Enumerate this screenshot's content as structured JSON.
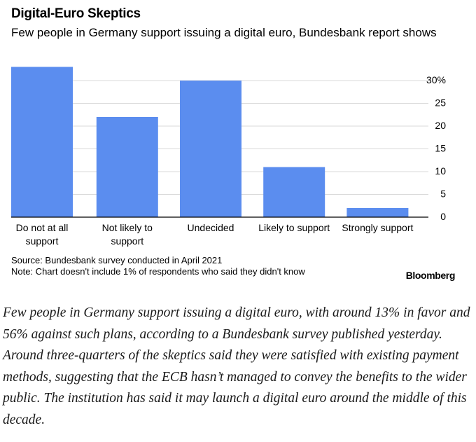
{
  "chart_data": {
    "type": "bar",
    "title": "Digital-Euro Skeptics",
    "subtitle": "Few people in Germany support issuing a digital euro, Bundesbank report shows",
    "categories": [
      [
        "Do not at all",
        "support"
      ],
      [
        "Not likely to",
        "support"
      ],
      [
        "Undecided"
      ],
      [
        "Likely to support"
      ],
      [
        "Strongly support"
      ]
    ],
    "values": [
      33,
      22,
      30,
      11,
      2
    ],
    "ylim": [
      0,
      33
    ],
    "yticks": [
      0,
      5,
      10,
      15,
      20,
      25,
      30
    ],
    "ytick_labels": [
      "0",
      "5",
      "10",
      "15",
      "20",
      "25",
      "30%"
    ],
    "y_axis_position": "right",
    "grid": true,
    "bar_color": "#5b8def"
  },
  "source": "Source: Bundesbank survey conducted in April 2021",
  "note": "Note: Chart doesn't include 1% of respondents who said they didn't know",
  "brand": "Bloomberg",
  "caption": "Few people in Germany support issuing a digital euro, with around 13% in favor and 56% against such plans, according to a Bundesbank survey published yesterday. Around three-quarters of the skeptics said they were satisfied with existing payment methods, suggesting that the ECB hasn’t managed to convey the benefits to the wider public. The institution has said it may launch a digital euro around the middle of this decade."
}
